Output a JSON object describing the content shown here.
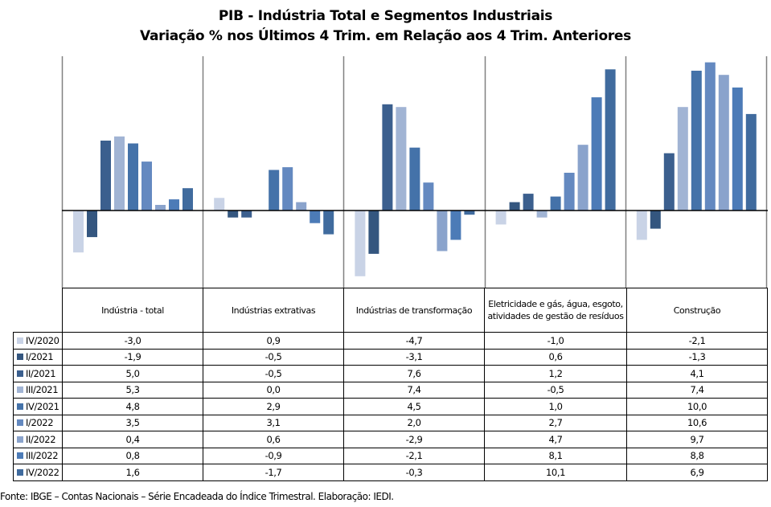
{
  "chart_data": {
    "type": "bar",
    "title": "PIB - Indústria Total e Segmentos Industriais",
    "subtitle": "Variação % nos Últimos 4 Trim. em Relação aos 4 Trim. Anteriores",
    "xlabel": "",
    "ylabel": "",
    "ylim": [
      -5.4,
      11.1
    ],
    "grid": false,
    "legend": "table-left",
    "categories": [
      "Indústria - total",
      "Indústrias extrativas",
      "Indústrias de transformação",
      "Eletricidade e gás, água, esgoto, atividades de gestão de resíduos",
      "Construção"
    ],
    "series": [
      {
        "name": "IV/2020",
        "color": "#C9D3E6",
        "values": [
          -3.0,
          0.9,
          -4.7,
          -1.0,
          -2.1
        ],
        "labels": [
          "-3,0",
          "0,9",
          "-4,7",
          "-1,0",
          "-2,1"
        ]
      },
      {
        "name": "I/2021",
        "color": "#34567F",
        "values": [
          -1.9,
          -0.5,
          -3.1,
          0.6,
          -1.3
        ],
        "labels": [
          "-1,9",
          "-0,5",
          "-3,1",
          "0,6",
          "-1,3"
        ]
      },
      {
        "name": "II/2021",
        "color": "#3B5F8E",
        "values": [
          5.0,
          -0.5,
          7.6,
          1.2,
          4.1
        ],
        "labels": [
          "5,0",
          "-0,5",
          "7,6",
          "1,2",
          "4,1"
        ]
      },
      {
        "name": "III/2021",
        "color": "#A1B4D4",
        "values": [
          5.3,
          0.0,
          7.4,
          -0.5,
          7.4
        ],
        "labels": [
          "5,3",
          "0,0",
          "7,4",
          "-0,5",
          "7,4"
        ]
      },
      {
        "name": "IV/2021",
        "color": "#4472A9",
        "values": [
          4.8,
          2.9,
          4.5,
          1.0,
          10.0
        ],
        "labels": [
          "4,8",
          "2,9",
          "4,5",
          "1,0",
          "10,0"
        ]
      },
      {
        "name": "I/2022",
        "color": "#6489C0",
        "values": [
          3.5,
          3.1,
          2.0,
          2.7,
          10.6
        ],
        "labels": [
          "3,5",
          "3,1",
          "2,0",
          "2,7",
          "10,6"
        ]
      },
      {
        "name": "II/2022",
        "color": "#8AA3CC",
        "values": [
          0.4,
          0.6,
          -2.9,
          4.7,
          9.7
        ],
        "labels": [
          "0,4",
          "0,6",
          "-2,9",
          "4,7",
          "9,7"
        ]
      },
      {
        "name": "III/2022",
        "color": "#4C7BB7",
        "values": [
          0.8,
          -0.9,
          -2.1,
          8.1,
          8.8
        ],
        "labels": [
          "0,8",
          "-0,9",
          "-2,1",
          "8,1",
          "8,8"
        ]
      },
      {
        "name": "IV/2022",
        "color": "#406B9E",
        "values": [
          1.6,
          -1.7,
          -0.3,
          10.1,
          6.9
        ],
        "labels": [
          "1,6",
          "-1,7",
          "-0,3",
          "10,1",
          "6,9"
        ]
      }
    ]
  },
  "footer": "Fonte: IBGE – Contas Nacionais – Série Encadeada do Índice Trimestral. Elaboração: IEDI."
}
